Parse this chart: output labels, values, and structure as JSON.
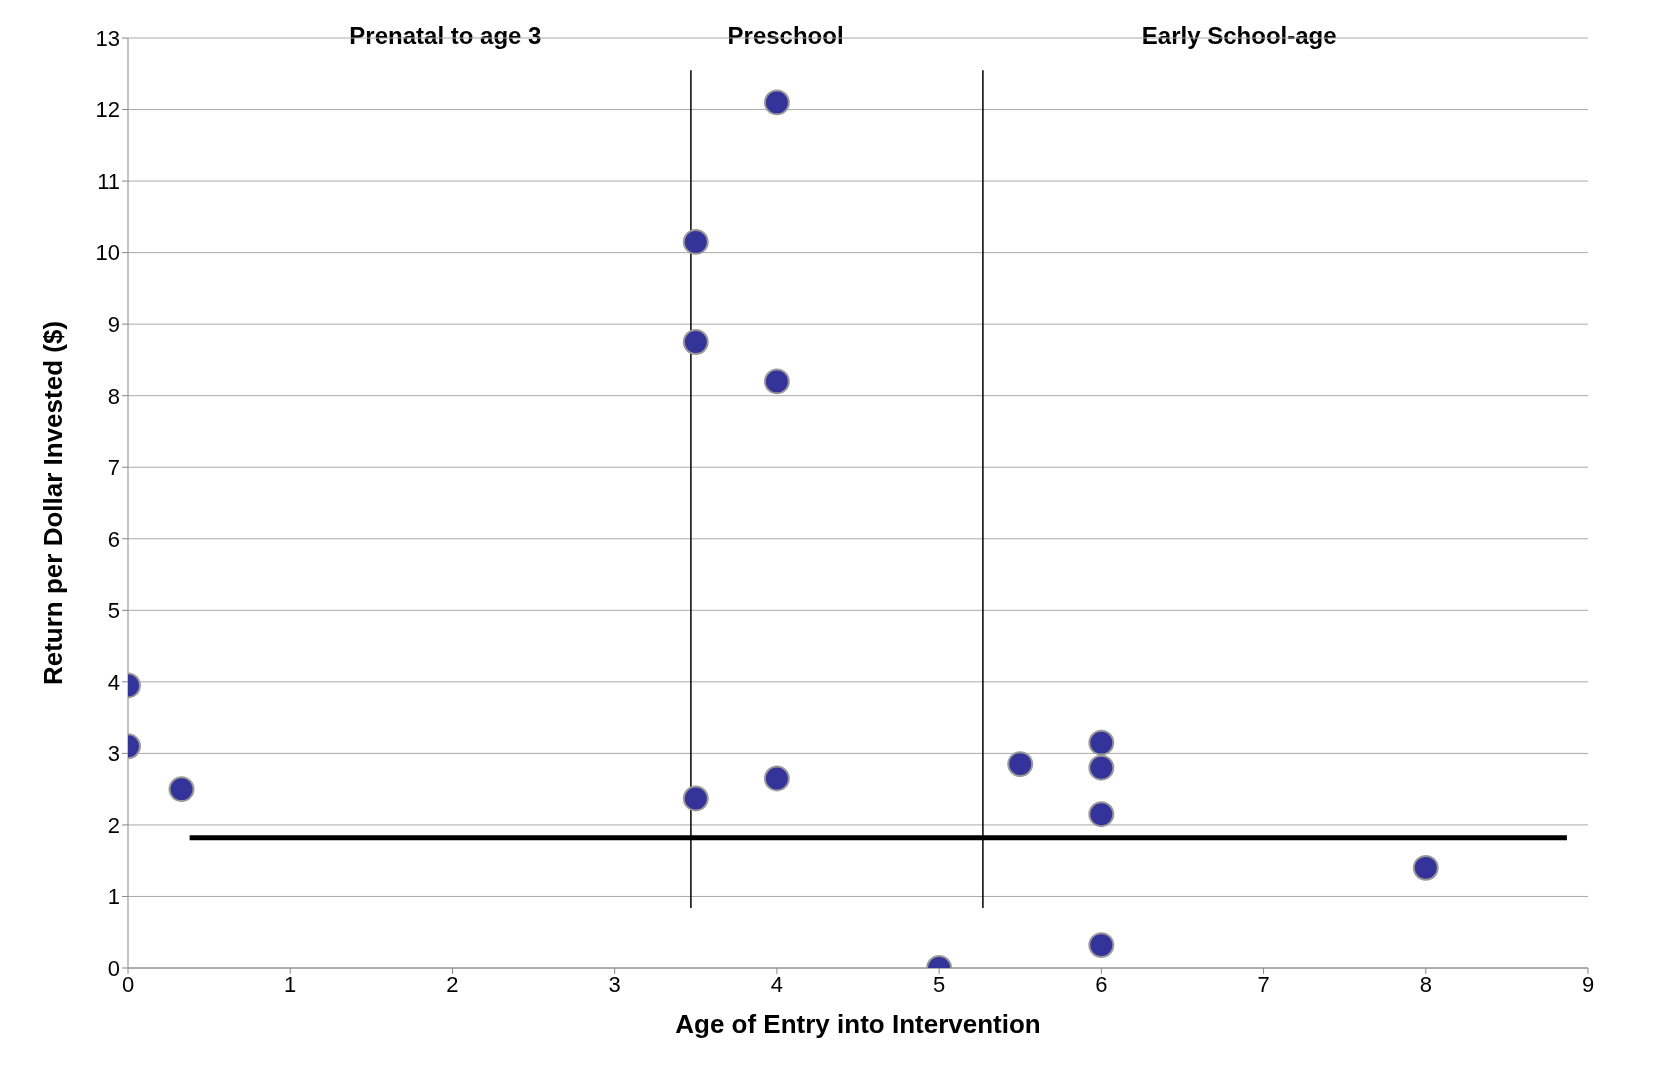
{
  "chart_data": {
    "type": "scatter",
    "xlabel": "Age of Entry into Intervention",
    "ylabel": "Return per Dollar Invested ($)",
    "xlim": [
      0,
      9
    ],
    "xticks": [
      0,
      1,
      2,
      3,
      4,
      5,
      6,
      7,
      8,
      9
    ],
    "ylim": [
      0,
      13
    ],
    "yticks": [
      0,
      1,
      2,
      3,
      4,
      5,
      6,
      7,
      8,
      9,
      10,
      11,
      12,
      13
    ],
    "grid": "y",
    "marker": "circle",
    "series": [
      {
        "color": "#333399",
        "x": [
          0,
          0,
          0.33,
          3.5,
          3.5,
          3.5,
          4,
          4,
          4,
          5,
          5.5,
          6,
          6,
          6,
          6,
          8
        ],
        "values": [
          3.95,
          3.1,
          2.5,
          10.15,
          8.75,
          2.37,
          12.1,
          8.2,
          2.65,
          0,
          2.85,
          3.15,
          2.8,
          2.15,
          0.32,
          1.4
        ]
      },
      {
        "type": "line",
        "color": "#000000",
        "x": [
          0.38,
          8.87
        ],
        "values": [
          1.82,
          1.82
        ],
        "marker": "none"
      },
      {
        "type": "line",
        "color": "#000000",
        "x": [
          3.47,
          3.47
        ],
        "values": [
          0.84,
          12.55
        ],
        "marker": "none"
      },
      {
        "type": "line",
        "color": "#000000",
        "x": [
          5.27,
          5.27
        ],
        "values": [
          0.84,
          12.55
        ],
        "marker": "none"
      }
    ],
    "annotations": [
      "Prenatal to age 3",
      "Preschool",
      "Early School-age"
    ]
  }
}
